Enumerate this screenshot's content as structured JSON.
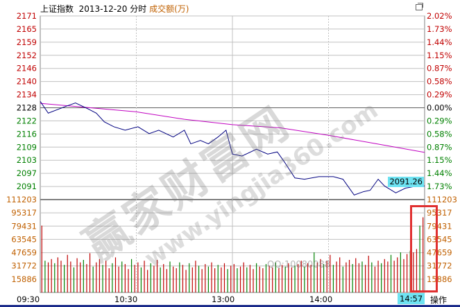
{
  "header": {
    "index_name": "上证指数",
    "date": "2013-12-20",
    "mode": "分时",
    "volume_label": "成交额(万)"
  },
  "price_axis": {
    "labels": [
      "2171",
      "2165",
      "2159",
      "2152",
      "2146",
      "2140",
      "2134",
      "2128",
      "2122",
      "2116",
      "2109",
      "2103",
      "2097",
      "2091"
    ],
    "pct_labels": [
      "2.02%",
      "1.73%",
      "1.44%",
      "1.15%",
      "0.87%",
      "0.58%",
      "0.29%",
      "0.00%",
      "0.29%",
      "0.58%",
      "0.87%",
      "1.15%",
      "1.44%",
      "1.73%"
    ],
    "range": [
      2171,
      2091
    ],
    "prev_close": 2128
  },
  "volume_axis": {
    "labels": [
      "111203",
      "95317",
      "79431",
      "63545",
      "47659",
      "31772",
      "15886"
    ],
    "max": 111203
  },
  "time_axis": {
    "labels": [
      "09:30",
      "10:30",
      "13:00",
      "14:00"
    ],
    "cursor_time": "14:57"
  },
  "cursor_price": "2091.26",
  "operation_label": "操作",
  "colors": {
    "price_line": "#000080",
    "avg_line": "#c000c0",
    "up": "#c00000",
    "down": "#008000",
    "grid": "#c0c0c0",
    "axis_red": "#c00000",
    "axis_green": "#008000",
    "axis_vol": "#c06000",
    "highlight": "#6ee3f2",
    "annotation": "#e03030"
  },
  "watermark": {
    "brand": "赢家财富网",
    "url": "www.yingjia360.com",
    "qq": "QQ:10080088"
  },
  "chart_data": {
    "type": "line",
    "price_series": [
      [
        0,
        2130.9
      ],
      [
        5,
        2125.4
      ],
      [
        16,
        2128.6
      ],
      [
        22,
        2130.2
      ],
      [
        29,
        2127.7
      ],
      [
        35,
        2125.4
      ],
      [
        40,
        2121.3
      ],
      [
        46,
        2119.0
      ],
      [
        53,
        2117.4
      ],
      [
        61,
        2119.0
      ],
      [
        68,
        2115.8
      ],
      [
        74,
        2117.4
      ],
      [
        83,
        2114.2
      ],
      [
        90,
        2117.4
      ],
      [
        94,
        2111.0
      ],
      [
        100,
        2112.6
      ],
      [
        105,
        2111.0
      ],
      [
        111,
        2114.2
      ],
      [
        116,
        2117.4
      ],
      [
        120,
        2106.2
      ],
      [
        126,
        2105.3
      ],
      [
        135,
        2108.5
      ],
      [
        142,
        2106.2
      ],
      [
        148,
        2107.2
      ],
      [
        152,
        2103.0
      ],
      [
        159,
        2095.0
      ],
      [
        165,
        2094.4
      ],
      [
        174,
        2095.6
      ],
      [
        183,
        2095.6
      ],
      [
        189,
        2094.4
      ],
      [
        196,
        2087.0
      ],
      [
        202,
        2088.6
      ],
      [
        206,
        2089.2
      ],
      [
        211,
        2094.4
      ],
      [
        215,
        2091.2
      ],
      [
        222,
        2088.0
      ],
      [
        228,
        2090.2
      ],
      [
        235,
        2091.2
      ],
      [
        238,
        2091.2
      ],
      [
        240,
        2091.26
      ]
    ],
    "avg_series": [
      [
        0,
        2130
      ],
      [
        30,
        2128
      ],
      [
        60,
        2126
      ],
      [
        90,
        2122.5
      ],
      [
        120,
        2120
      ],
      [
        150,
        2118.5
      ],
      [
        180,
        2115
      ],
      [
        210,
        2111
      ],
      [
        240,
        2107
      ]
    ],
    "volume": [
      80000,
      38000,
      36000,
      40000,
      35000,
      42000,
      38000,
      33000,
      45000,
      37000,
      30000,
      41000,
      36000,
      39000,
      34000,
      47000,
      31000,
      36000,
      40000,
      33000,
      38000,
      29000,
      35000,
      42000,
      31000,
      37000,
      34000,
      28000,
      40000,
      33000,
      36000,
      30000,
      38000,
      27000,
      35000,
      32000,
      39000,
      30000,
      34000,
      28000,
      37000,
      31000,
      29000,
      36000,
      33000,
      27000,
      35000,
      30000,
      38000,
      32000,
      28000,
      34000,
      31000,
      36000,
      29000,
      33000,
      30000,
      35000,
      28000,
      32000,
      34000,
      29000,
      31000,
      36000,
      30000,
      33000,
      28000,
      35000,
      31000,
      29000,
      34000,
      32000,
      30000,
      36000,
      29000,
      33000,
      31000,
      35000,
      30000,
      32000,
      34000,
      38000,
      31000,
      35000,
      33000,
      48000,
      36000,
      40000,
      34000,
      38000,
      45000,
      33000,
      37000,
      42000,
      31000,
      36000,
      39000,
      34000,
      41000,
      35000,
      37000,
      33000,
      44000,
      36000,
      31000,
      38000,
      35000,
      40000,
      37000,
      45000,
      38000,
      42000,
      48000,
      40000,
      46000,
      50000,
      48000,
      52000,
      80000,
      90000
    ]
  }
}
